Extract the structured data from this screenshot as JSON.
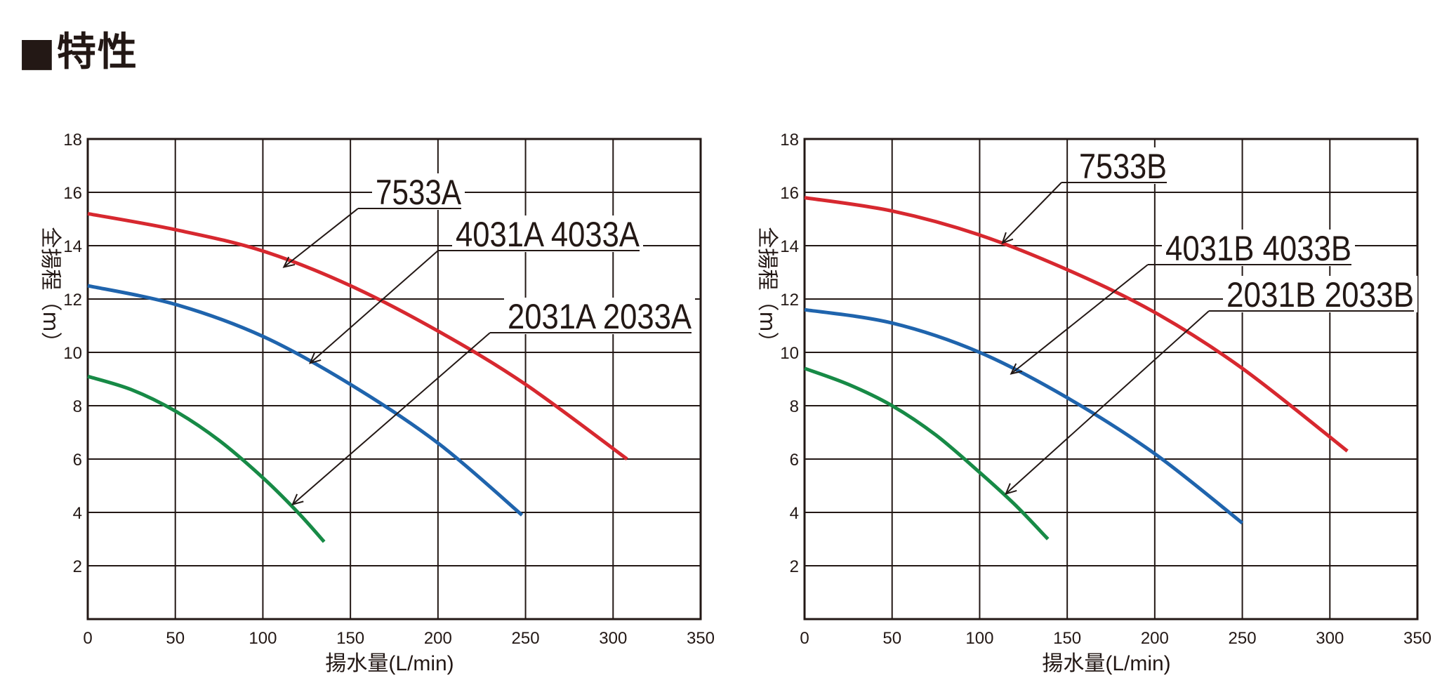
{
  "page": {
    "title": "■特性"
  },
  "chart_data": [
    {
      "type": "line",
      "xlabel": "揚水量(L/min)",
      "ylabel": "全揚程（m）",
      "xlim": [
        0,
        350
      ],
      "ylim": [
        0,
        18
      ],
      "xticks": [
        0,
        50,
        100,
        150,
        200,
        250,
        300,
        350
      ],
      "yticks": [
        2,
        4,
        6,
        8,
        10,
        12,
        14,
        16,
        18
      ],
      "grid": true,
      "series": [
        {
          "name": "7533A",
          "color": "#d7282f",
          "x": [
            0,
            50,
            100,
            150,
            200,
            250,
            308
          ],
          "y": [
            15.2,
            14.6,
            13.8,
            12.5,
            10.8,
            8.8,
            6.0
          ]
        },
        {
          "name": "4031A 4033A",
          "color": "#1f64ad",
          "x": [
            0,
            50,
            100,
            150,
            200,
            248
          ],
          "y": [
            12.5,
            11.8,
            10.6,
            8.8,
            6.6,
            3.9
          ]
        },
        {
          "name": "2031A 2033A",
          "color": "#178a46",
          "x": [
            0,
            25,
            50,
            75,
            100,
            120,
            135
          ],
          "y": [
            9.1,
            8.6,
            7.8,
            6.7,
            5.3,
            4.0,
            2.9
          ]
        }
      ],
      "annotations": [
        {
          "text": "7533A",
          "series": "7533A",
          "x": 112,
          "y": 13.2
        },
        {
          "text": "4031A  4033A",
          "series": "4031A 4033A",
          "x": 127,
          "y": 9.6
        },
        {
          "text": "2031A  2033A",
          "series": "2031A 2033A",
          "x": 117,
          "y": 4.3
        }
      ]
    },
    {
      "type": "line",
      "xlabel": "揚水量(L/min)",
      "ylabel": "全揚程（m）",
      "xlim": [
        0,
        350
      ],
      "ylim": [
        0,
        18
      ],
      "xticks": [
        0,
        50,
        100,
        150,
        200,
        250,
        300,
        350
      ],
      "yticks": [
        2,
        4,
        6,
        8,
        10,
        12,
        14,
        16,
        18
      ],
      "grid": true,
      "series": [
        {
          "name": "7533B",
          "color": "#d7282f",
          "x": [
            0,
            50,
            100,
            150,
            200,
            250,
            310
          ],
          "y": [
            15.8,
            15.3,
            14.4,
            13.1,
            11.5,
            9.4,
            6.3
          ]
        },
        {
          "name": "4031B 4033B",
          "color": "#1f64ad",
          "x": [
            0,
            50,
            100,
            150,
            200,
            250
          ],
          "y": [
            11.6,
            11.1,
            10.0,
            8.3,
            6.2,
            3.6
          ]
        },
        {
          "name": "2031B 2033B",
          "color": "#178a46",
          "x": [
            0,
            25,
            50,
            75,
            100,
            120,
            139
          ],
          "y": [
            9.4,
            8.8,
            8.0,
            6.9,
            5.5,
            4.3,
            3.0
          ]
        }
      ],
      "annotations": [
        {
          "text": "7533B",
          "series": "7533B",
          "x": 113,
          "y": 14.1
        },
        {
          "text": "4031B  4033B",
          "series": "4031B 4033B",
          "x": 118,
          "y": 9.2
        },
        {
          "text": "2031B  2033B",
          "series": "2031B 2033B",
          "x": 115,
          "y": 4.7
        }
      ]
    }
  ]
}
